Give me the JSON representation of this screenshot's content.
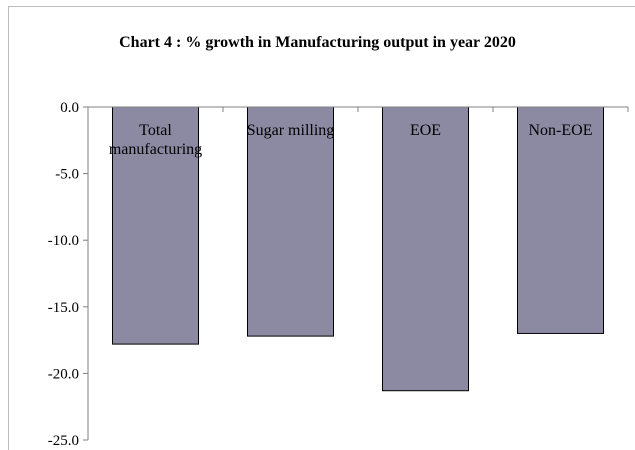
{
  "chart_data": {
    "type": "bar",
    "title": "Chart 4 : % growth in Manufacturing output in year  2020",
    "categories": [
      [
        "Total",
        "manufacturing"
      ],
      [
        "Sugar milling"
      ],
      [
        "EOE"
      ],
      [
        "Non-EOE"
      ]
    ],
    "values": [
      -17.8,
      -17.2,
      -21.3,
      -17.0
    ],
    "ylim": [
      -25,
      0
    ],
    "yticks": [
      "0.0",
      "-5.0",
      "-10.0",
      "-15.0",
      "-20.0",
      "-25.0"
    ],
    "bar_color": "#8c8aa3",
    "grid": false,
    "legend": "none"
  }
}
